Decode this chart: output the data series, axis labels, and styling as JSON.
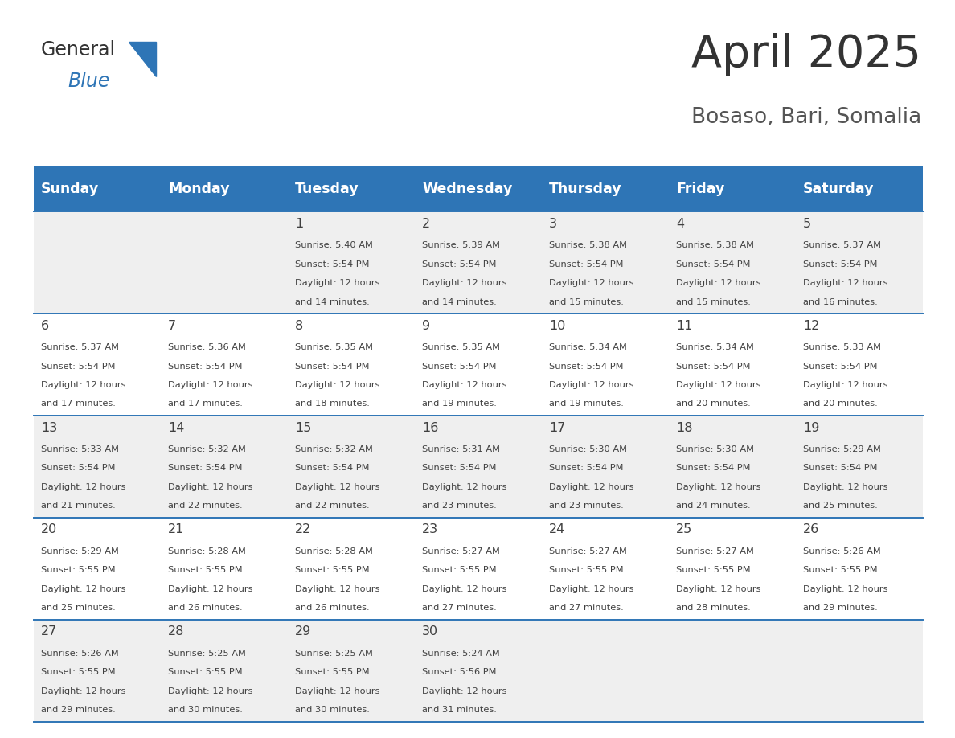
{
  "title": "April 2025",
  "subtitle": "Bosaso, Bari, Somalia",
  "header_bg": "#2E75B6",
  "header_text_color": "#FFFFFF",
  "cell_bg_white": "#FFFFFF",
  "cell_bg_gray": "#EFEFEF",
  "border_color": "#2E75B6",
  "text_color": "#404040",
  "days_of_week": [
    "Sunday",
    "Monday",
    "Tuesday",
    "Wednesday",
    "Thursday",
    "Friday",
    "Saturday"
  ],
  "weeks": [
    [
      {
        "day": null,
        "sunrise": null,
        "sunset": null,
        "daylight": null
      },
      {
        "day": null,
        "sunrise": null,
        "sunset": null,
        "daylight": null
      },
      {
        "day": 1,
        "sunrise": "5:40 AM",
        "sunset": "5:54 PM",
        "daylight": "12 hours\nand 14 minutes."
      },
      {
        "day": 2,
        "sunrise": "5:39 AM",
        "sunset": "5:54 PM",
        "daylight": "12 hours\nand 14 minutes."
      },
      {
        "day": 3,
        "sunrise": "5:38 AM",
        "sunset": "5:54 PM",
        "daylight": "12 hours\nand 15 minutes."
      },
      {
        "day": 4,
        "sunrise": "5:38 AM",
        "sunset": "5:54 PM",
        "daylight": "12 hours\nand 15 minutes."
      },
      {
        "day": 5,
        "sunrise": "5:37 AM",
        "sunset": "5:54 PM",
        "daylight": "12 hours\nand 16 minutes."
      }
    ],
    [
      {
        "day": 6,
        "sunrise": "5:37 AM",
        "sunset": "5:54 PM",
        "daylight": "12 hours\nand 17 minutes."
      },
      {
        "day": 7,
        "sunrise": "5:36 AM",
        "sunset": "5:54 PM",
        "daylight": "12 hours\nand 17 minutes."
      },
      {
        "day": 8,
        "sunrise": "5:35 AM",
        "sunset": "5:54 PM",
        "daylight": "12 hours\nand 18 minutes."
      },
      {
        "day": 9,
        "sunrise": "5:35 AM",
        "sunset": "5:54 PM",
        "daylight": "12 hours\nand 19 minutes."
      },
      {
        "day": 10,
        "sunrise": "5:34 AM",
        "sunset": "5:54 PM",
        "daylight": "12 hours\nand 19 minutes."
      },
      {
        "day": 11,
        "sunrise": "5:34 AM",
        "sunset": "5:54 PM",
        "daylight": "12 hours\nand 20 minutes."
      },
      {
        "day": 12,
        "sunrise": "5:33 AM",
        "sunset": "5:54 PM",
        "daylight": "12 hours\nand 20 minutes."
      }
    ],
    [
      {
        "day": 13,
        "sunrise": "5:33 AM",
        "sunset": "5:54 PM",
        "daylight": "12 hours\nand 21 minutes."
      },
      {
        "day": 14,
        "sunrise": "5:32 AM",
        "sunset": "5:54 PM",
        "daylight": "12 hours\nand 22 minutes."
      },
      {
        "day": 15,
        "sunrise": "5:32 AM",
        "sunset": "5:54 PM",
        "daylight": "12 hours\nand 22 minutes."
      },
      {
        "day": 16,
        "sunrise": "5:31 AM",
        "sunset": "5:54 PM",
        "daylight": "12 hours\nand 23 minutes."
      },
      {
        "day": 17,
        "sunrise": "5:30 AM",
        "sunset": "5:54 PM",
        "daylight": "12 hours\nand 23 minutes."
      },
      {
        "day": 18,
        "sunrise": "5:30 AM",
        "sunset": "5:54 PM",
        "daylight": "12 hours\nand 24 minutes."
      },
      {
        "day": 19,
        "sunrise": "5:29 AM",
        "sunset": "5:54 PM",
        "daylight": "12 hours\nand 25 minutes."
      }
    ],
    [
      {
        "day": 20,
        "sunrise": "5:29 AM",
        "sunset": "5:55 PM",
        "daylight": "12 hours\nand 25 minutes."
      },
      {
        "day": 21,
        "sunrise": "5:28 AM",
        "sunset": "5:55 PM",
        "daylight": "12 hours\nand 26 minutes."
      },
      {
        "day": 22,
        "sunrise": "5:28 AM",
        "sunset": "5:55 PM",
        "daylight": "12 hours\nand 26 minutes."
      },
      {
        "day": 23,
        "sunrise": "5:27 AM",
        "sunset": "5:55 PM",
        "daylight": "12 hours\nand 27 minutes."
      },
      {
        "day": 24,
        "sunrise": "5:27 AM",
        "sunset": "5:55 PM",
        "daylight": "12 hours\nand 27 minutes."
      },
      {
        "day": 25,
        "sunrise": "5:27 AM",
        "sunset": "5:55 PM",
        "daylight": "12 hours\nand 28 minutes."
      },
      {
        "day": 26,
        "sunrise": "5:26 AM",
        "sunset": "5:55 PM",
        "daylight": "12 hours\nand 29 minutes."
      }
    ],
    [
      {
        "day": 27,
        "sunrise": "5:26 AM",
        "sunset": "5:55 PM",
        "daylight": "12 hours\nand 29 minutes."
      },
      {
        "day": 28,
        "sunrise": "5:25 AM",
        "sunset": "5:55 PM",
        "daylight": "12 hours\nand 30 minutes."
      },
      {
        "day": 29,
        "sunrise": "5:25 AM",
        "sunset": "5:55 PM",
        "daylight": "12 hours\nand 30 minutes."
      },
      {
        "day": 30,
        "sunrise": "5:24 AM",
        "sunset": "5:56 PM",
        "daylight": "12 hours\nand 31 minutes."
      },
      {
        "day": null,
        "sunrise": null,
        "sunset": null,
        "daylight": null
      },
      {
        "day": null,
        "sunrise": null,
        "sunset": null,
        "daylight": null
      },
      {
        "day": null,
        "sunrise": null,
        "sunset": null,
        "daylight": null
      }
    ]
  ]
}
